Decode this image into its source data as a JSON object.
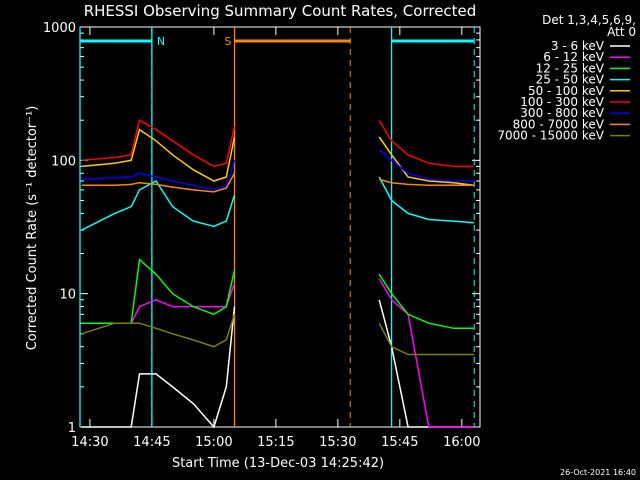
{
  "chart_data": {
    "type": "line",
    "title": "RHESSI Observing Summary Count Rates, Corrected",
    "legend_title": [
      "Det 1,3,4,5,6,9,",
      "Att 0"
    ],
    "x_label": "Start Time (13-Dec-03 14:25:42)",
    "y_label": "Corrected Count Rate (s⁻¹ detector⁻¹)",
    "footer": "26-Oct-2021 16:40",
    "log_y": true,
    "x": [
      "14:28",
      "14:36",
      "14:40",
      "14:42",
      "14:46",
      "14:50",
      "14:55",
      "15:00",
      "15:03",
      "15:05",
      "15:20",
      "15:40",
      "15:43",
      "15:47",
      "15:52",
      "15:58",
      "16:03"
    ],
    "xlim": [
      "14:27.6",
      "16:04.4"
    ],
    "xticks": [
      "14:30",
      "14:45",
      "15:00",
      "15:15",
      "15:30",
      "15:45",
      "16:00"
    ],
    "ylim": [
      1,
      1000
    ],
    "yticks": [
      1,
      10,
      100,
      1000
    ],
    "series": [
      {
        "name": "3 - 6 keV",
        "color": "#ffffff",
        "values": [
          1,
          1,
          1,
          2.5,
          2.5,
          2,
          1.5,
          1,
          2,
          8,
          null,
          9,
          4,
          1,
          1,
          1,
          1
        ]
      },
      {
        "name": "6 - 12 keV",
        "color": "#ff00ff",
        "values": [
          6,
          6,
          6,
          8,
          9,
          8,
          8,
          8,
          8,
          12,
          null,
          13,
          9,
          7,
          1,
          1,
          1
        ]
      },
      {
        "name": "12 - 25 keV",
        "color": "#00ff00",
        "values": [
          6,
          6,
          6,
          18,
          14,
          10,
          8,
          7,
          8,
          15,
          null,
          14,
          10,
          7,
          6,
          5.5,
          5.5
        ]
      },
      {
        "name": "25 - 50 keV",
        "color": "#00ffff",
        "values": [
          30,
          40,
          45,
          60,
          70,
          45,
          35,
          32,
          35,
          55,
          null,
          75,
          50,
          40,
          36,
          35,
          34
        ]
      },
      {
        "name": "50 - 100 keV",
        "color": "#ffcc00",
        "values": [
          90,
          95,
          100,
          170,
          140,
          110,
          85,
          70,
          75,
          150,
          null,
          150,
          110,
          75,
          70,
          68,
          65
        ]
      },
      {
        "name": "100 - 300 keV",
        "color": "#ff0000",
        "values": [
          100,
          105,
          110,
          200,
          170,
          140,
          110,
          90,
          95,
          180,
          null,
          200,
          140,
          110,
          95,
          90,
          90
        ]
      },
      {
        "name": "300 - 800 keV",
        "color": "#0000ff",
        "values": [
          72,
          74,
          75,
          80,
          75,
          70,
          65,
          60,
          65,
          100,
          null,
          120,
          100,
          80,
          72,
          70,
          70
        ]
      },
      {
        "name": "800 - 7000 keV",
        "color": "#ff8800",
        "values": [
          65,
          65,
          66,
          68,
          66,
          63,
          60,
          58,
          62,
          80,
          null,
          72,
          68,
          66,
          65,
          65,
          65
        ]
      },
      {
        "name": "7000 - 15000 keV",
        "color": "#808000",
        "values": [
          5,
          6,
          6,
          6,
          5.5,
          5,
          4.5,
          4,
          4.5,
          7,
          null,
          6,
          4,
          3.5,
          3.5,
          3.5,
          3.5
        ]
      }
    ],
    "bars": [
      {
        "label": "",
        "start": "14:27.6",
        "end": "14:45",
        "color": "#00ffff"
      },
      {
        "label": "N",
        "start": "14:45",
        "end": "14:45",
        "color": "#00ffff"
      },
      {
        "label": "S",
        "start": "15:05",
        "end": "15:33",
        "color": "#ff8800"
      },
      {
        "label": "",
        "start": "15:43",
        "end": "16:03",
        "color": "#00ffff"
      }
    ]
  }
}
